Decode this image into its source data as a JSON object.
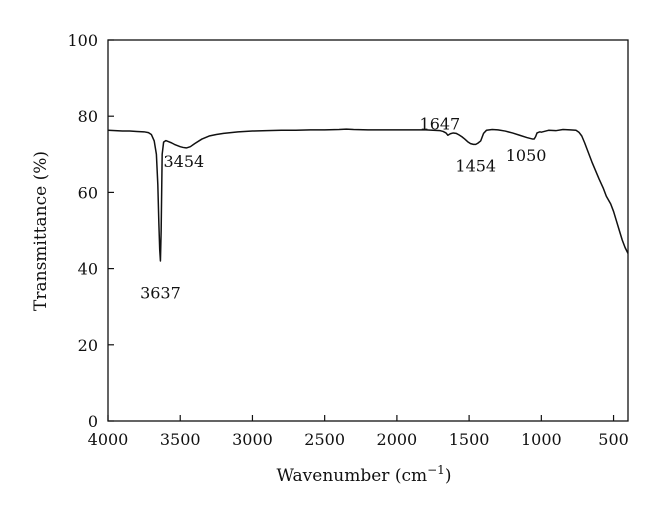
{
  "chart_data": {
    "type": "line",
    "xlabel": "Wavenumber (cm",
    "xlabel_sup": "−1",
    "xlabel_tail": ")",
    "ylabel": "Transmittance (%)",
    "xlim": [
      4000,
      400
    ],
    "ylim": [
      0,
      100
    ],
    "x_reversed": true,
    "x_ticks": [
      4000,
      3500,
      3000,
      2500,
      2000,
      1500,
      1000,
      500
    ],
    "x_tick_labels": [
      "4000",
      "3500",
      "3000",
      "2500",
      "2000",
      "1500",
      "1000",
      "500"
    ],
    "y_ticks": [
      0,
      20,
      40,
      60,
      80,
      100
    ],
    "y_tick_labels": [
      "0",
      "20",
      "40",
      "60",
      "80",
      "100"
    ],
    "grid": false,
    "line_color": "#111111",
    "series": [
      {
        "x": [
          4000,
          3950,
          3900,
          3850,
          3800,
          3750,
          3720,
          3700,
          3680,
          3665,
          3655,
          3648,
          3642,
          3637,
          3632,
          3625,
          3615,
          3600,
          3580,
          3560,
          3540,
          3520,
          3500,
          3480,
          3460,
          3454,
          3430,
          3400,
          3350,
          3300,
          3250,
          3200,
          3100,
          3000,
          2900,
          2800,
          2700,
          2600,
          2500,
          2400,
          2350,
          2300,
          2200,
          2100,
          2000,
          1900,
          1800,
          1750,
          1700,
          1680,
          1660,
          1647,
          1630,
          1610,
          1590,
          1570,
          1550,
          1530,
          1510,
          1490,
          1470,
          1454,
          1440,
          1420,
          1400,
          1380,
          1360,
          1340,
          1300,
          1250,
          1200,
          1150,
          1100,
          1080,
          1060,
          1050,
          1040,
          1030,
          1010,
          1000,
          950,
          900,
          850,
          800,
          760,
          740,
          720,
          700,
          680,
          650,
          600,
          570,
          550,
          520,
          500,
          480,
          460,
          440,
          420,
          400
        ],
        "y": [
          76.3,
          76.2,
          76.1,
          76.1,
          76.0,
          75.9,
          75.7,
          75.2,
          73.5,
          70.0,
          62.0,
          52.0,
          45.0,
          42.0,
          50.0,
          70.0,
          73.2,
          73.6,
          73.3,
          73.0,
          72.6,
          72.3,
          72.0,
          71.8,
          71.7,
          71.7,
          72.0,
          72.8,
          74.0,
          74.8,
          75.2,
          75.5,
          75.9,
          76.1,
          76.2,
          76.3,
          76.3,
          76.4,
          76.4,
          76.5,
          76.6,
          76.5,
          76.4,
          76.4,
          76.4,
          76.4,
          76.4,
          76.3,
          76.2,
          76.0,
          75.6,
          75.0,
          75.4,
          75.6,
          75.5,
          75.1,
          74.6,
          74.0,
          73.3,
          72.8,
          72.6,
          72.6,
          72.9,
          73.5,
          75.5,
          76.3,
          76.4,
          76.5,
          76.4,
          76.1,
          75.6,
          75.0,
          74.4,
          74.2,
          74.0,
          74.0,
          74.6,
          75.6,
          75.9,
          75.8,
          76.3,
          76.2,
          76.5,
          76.4,
          76.3,
          75.8,
          74.8,
          73.0,
          71.0,
          68.0,
          63.5,
          61.0,
          59.0,
          57.0,
          55.0,
          52.5,
          50.0,
          47.5,
          45.5,
          44.0
        ]
      }
    ],
    "annotations": [
      {
        "text": "3637",
        "x": 3637,
        "y": 40
      },
      {
        "text": "3454",
        "x": 3454,
        "y": 71.7
      },
      {
        "text": "1647",
        "x": 1647,
        "y": 75.0
      },
      {
        "text": "1454",
        "x": 1454,
        "y": 72.6
      },
      {
        "text": "1050",
        "x": 1050,
        "y": 74.0
      }
    ]
  }
}
